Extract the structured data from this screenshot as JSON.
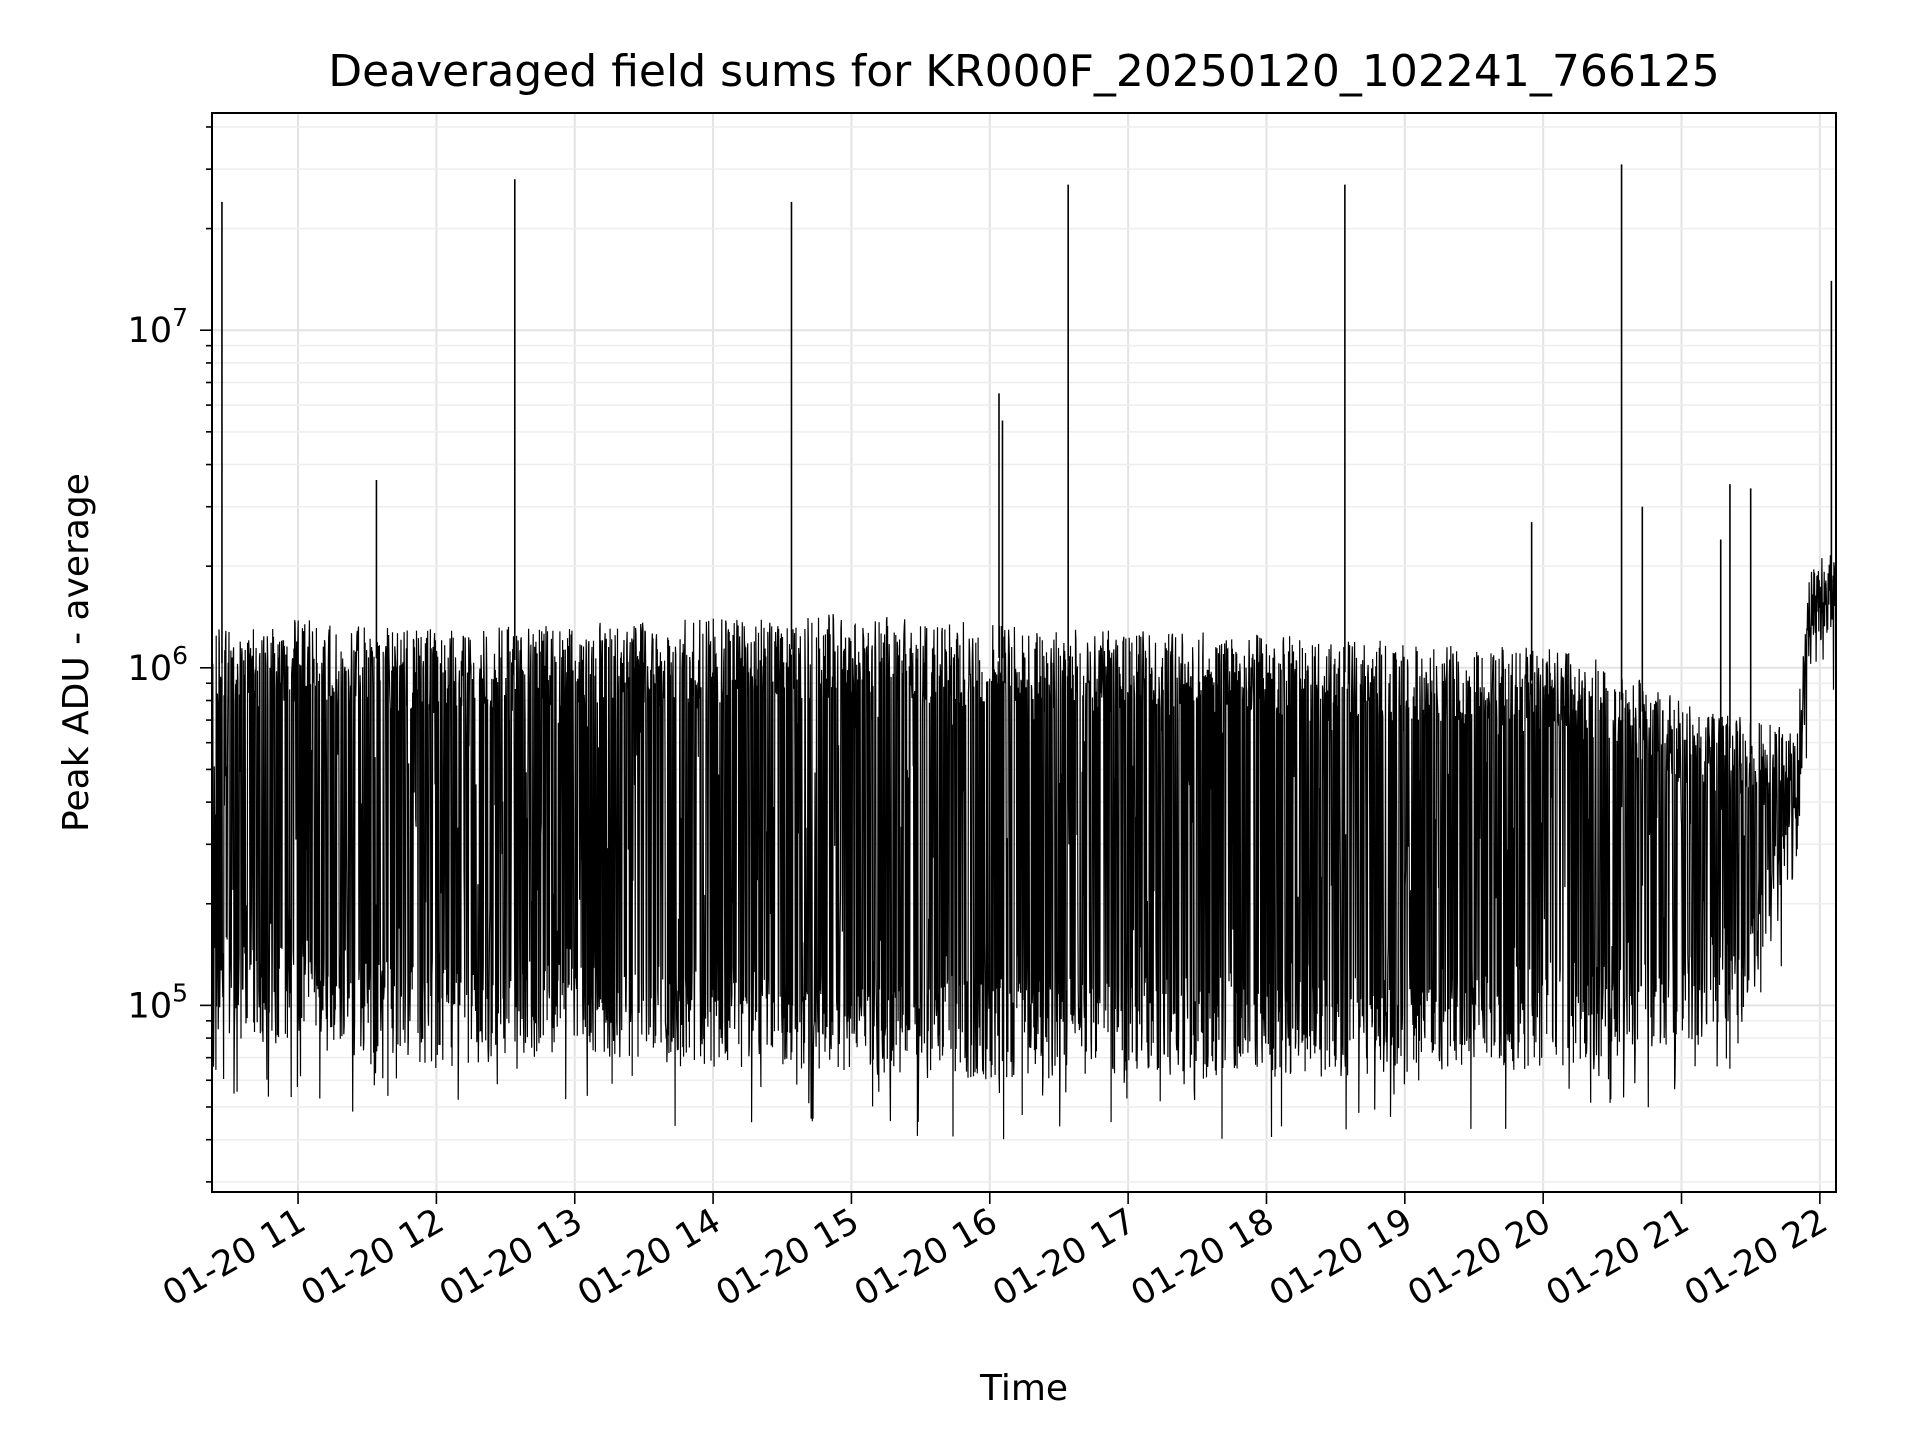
{
  "chart_data": {
    "type": "line",
    "title": "Deaveraged field sums for KR000F_20250120_102241_766125",
    "xlabel": "Time",
    "ylabel": "Peak ADU - average",
    "yscale": "log",
    "ylim": [
      28000,
      44000000
    ],
    "xlim": [
      "2025-01-20T10:22:41",
      "2025-01-20T22:07:00"
    ],
    "grid": true,
    "x_ticks": [
      {
        "value": "2025-01-20T11:00:00",
        "label": "01-20 11"
      },
      {
        "value": "2025-01-20T12:00:00",
        "label": "01-20 12"
      },
      {
        "value": "2025-01-20T13:00:00",
        "label": "01-20 13"
      },
      {
        "value": "2025-01-20T14:00:00",
        "label": "01-20 14"
      },
      {
        "value": "2025-01-20T15:00:00",
        "label": "01-20 15"
      },
      {
        "value": "2025-01-20T16:00:00",
        "label": "01-20 16"
      },
      {
        "value": "2025-01-20T17:00:00",
        "label": "01-20 17"
      },
      {
        "value": "2025-01-20T18:00:00",
        "label": "01-20 18"
      },
      {
        "value": "2025-01-20T19:00:00",
        "label": "01-20 19"
      },
      {
        "value": "2025-01-20T20:00:00",
        "label": "01-20 20"
      },
      {
        "value": "2025-01-20T21:00:00",
        "label": "01-20 21"
      },
      {
        "value": "2025-01-20T22:00:00",
        "label": "01-20 22"
      }
    ],
    "y_ticks": [
      {
        "value": 100000,
        "label": "10^5"
      },
      {
        "value": 1000000,
        "label": "10^6"
      },
      {
        "value": 10000000,
        "label": "10^7"
      }
    ],
    "series": [
      {
        "color": "#000000",
        "envelope": [
          {
            "t": "2025-01-20T10:30:00",
            "low": 80000,
            "high": 1300000
          },
          {
            "t": "2025-01-20T11:00:00",
            "low": 75000,
            "high": 1400000
          },
          {
            "t": "2025-01-20T12:00:00",
            "low": 65000,
            "high": 1300000
          },
          {
            "t": "2025-01-20T13:00:00",
            "low": 70000,
            "high": 1350000
          },
          {
            "t": "2025-01-20T14:00:00",
            "low": 65000,
            "high": 1400000
          },
          {
            "t": "2025-01-20T15:00:00",
            "low": 62000,
            "high": 1450000
          },
          {
            "t": "2025-01-20T16:00:00",
            "low": 60000,
            "high": 1350000
          },
          {
            "t": "2025-01-20T17:00:00",
            "low": 62000,
            "high": 1300000
          },
          {
            "t": "2025-01-20T18:00:00",
            "low": 60000,
            "high": 1250000
          },
          {
            "t": "2025-01-20T19:00:00",
            "low": 62000,
            "high": 1200000
          },
          {
            "t": "2025-01-20T20:00:00",
            "low": 65000,
            "high": 1150000
          },
          {
            "t": "2025-01-20T20:30:00",
            "low": 70000,
            "high": 1050000
          },
          {
            "t": "2025-01-20T21:00:00",
            "low": 75000,
            "high": 800000
          },
          {
            "t": "2025-01-20T21:30:00",
            "low": 90000,
            "high": 700000
          },
          {
            "t": "2025-01-20T21:50:00",
            "low": 250000,
            "high": 650000
          },
          {
            "t": "2025-01-20T21:55:00",
            "low": 1000000,
            "high": 2000000
          },
          {
            "t": "2025-01-20T22:07:00",
            "low": 1100000,
            "high": 2300000
          }
        ],
        "spikes": [
          {
            "t": "2025-01-20T10:27:00",
            "value": 24000000
          },
          {
            "t": "2025-01-20T11:34:00",
            "value": 3600000
          },
          {
            "t": "2025-01-20T12:34:00",
            "value": 28000000
          },
          {
            "t": "2025-01-20T14:34:00",
            "value": 24000000
          },
          {
            "t": "2025-01-20T16:04:00",
            "value": 6500000
          },
          {
            "t": "2025-01-20T16:05:30",
            "value": 5400000
          },
          {
            "t": "2025-01-20T16:34:00",
            "value": 27000000
          },
          {
            "t": "2025-01-20T18:34:00",
            "value": 27000000
          },
          {
            "t": "2025-01-20T19:55:00",
            "value": 2700000
          },
          {
            "t": "2025-01-20T20:34:00",
            "value": 31000000
          },
          {
            "t": "2025-01-20T20:43:00",
            "value": 3000000
          },
          {
            "t": "2025-01-20T21:17:00",
            "value": 2400000
          },
          {
            "t": "2025-01-20T21:21:00",
            "value": 3500000
          },
          {
            "t": "2025-01-20T21:30:00",
            "value": 3400000
          },
          {
            "t": "2025-01-20T22:05:00",
            "value": 14000000
          }
        ]
      }
    ]
  }
}
